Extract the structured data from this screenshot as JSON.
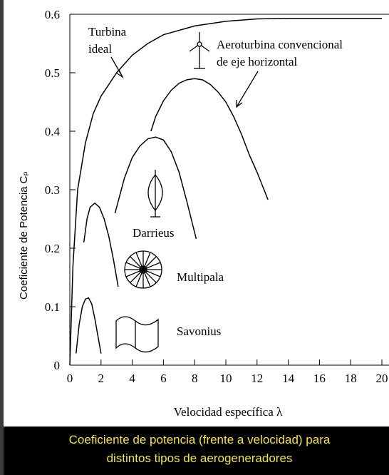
{
  "chart_data": {
    "type": "line",
    "x_label": "Velocidad específica λ",
    "y_label": "Coeficiente de Potencia Cₚ",
    "caption": [
      "Coeficiente de potencia (frente a velocidad) para",
      "distintos tipos de aerogeneradores"
    ],
    "xlim": [
      0,
      20
    ],
    "ylim": [
      0,
      0.6
    ],
    "xticks": [
      0,
      2,
      4,
      6,
      8,
      10,
      12,
      14,
      16,
      18,
      20
    ],
    "yticks": [
      0,
      0.1,
      0.2,
      0.3,
      0.4,
      0.5,
      0.6
    ],
    "series": [
      {
        "label": [
          "Turbina",
          "ideal"
        ],
        "color": "#000000",
        "x": [
          0,
          0.2,
          0.5,
          1,
          1.5,
          2,
          3,
          4,
          5,
          6,
          8,
          10,
          12,
          14,
          16,
          18,
          20
        ],
        "values": [
          0,
          0.17,
          0.3,
          0.38,
          0.43,
          0.46,
          0.5,
          0.53,
          0.55,
          0.565,
          0.58,
          0.588,
          0.592,
          0.593,
          0.593,
          0.593,
          0.593
        ]
      },
      {
        "label": [
          "Aeroturbina convencional",
          "de eje horizontal"
        ],
        "color": "#000000",
        "x": [
          5.2,
          5.5,
          6,
          6.5,
          7,
          7.5,
          8,
          8.5,
          9,
          9.5,
          10,
          10.5,
          11,
          11.5,
          12,
          12.7
        ],
        "values": [
          0.4,
          0.425,
          0.452,
          0.47,
          0.482,
          0.488,
          0.49,
          0.488,
          0.48,
          0.467,
          0.45,
          0.425,
          0.395,
          0.36,
          0.33,
          0.283
        ]
      },
      {
        "label": [
          "Darrieus"
        ],
        "color": "#000000",
        "x": [
          2.9,
          3.5,
          4,
          4.5,
          5,
          5.5,
          6,
          6.5,
          7,
          7.5,
          8.1
        ],
        "values": [
          0.26,
          0.32,
          0.355,
          0.375,
          0.387,
          0.39,
          0.385,
          0.365,
          0.33,
          0.28,
          0.216
        ]
      },
      {
        "label": [
          "Multipala"
        ],
        "color": "#000000",
        "x": [
          0.9,
          1.1,
          1.3,
          1.6,
          1.9,
          2.2,
          2.5,
          2.8,
          3.1
        ],
        "values": [
          0.21,
          0.25,
          0.27,
          0.277,
          0.27,
          0.25,
          0.22,
          0.18,
          0.134
        ]
      },
      {
        "label": [
          "Savonius"
        ],
        "color": "#000000",
        "x": [
          0.4,
          0.6,
          0.8,
          1.0,
          1.2,
          1.4,
          1.6,
          1.8,
          2.0
        ],
        "values": [
          0.02,
          0.07,
          0.1,
          0.113,
          0.115,
          0.105,
          0.08,
          0.05,
          0.02
        ]
      }
    ]
  }
}
